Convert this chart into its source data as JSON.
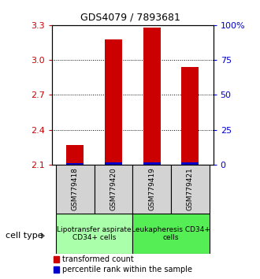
{
  "title": "GDS4079 / 7893681",
  "samples": [
    "GSM779418",
    "GSM779420",
    "GSM779419",
    "GSM779421"
  ],
  "transformed_counts": [
    2.27,
    3.18,
    3.28,
    2.94
  ],
  "percentile_ranks_pct": [
    1.0,
    1.5,
    1.5,
    1.5
  ],
  "ylim": [
    2.1,
    3.3
  ],
  "yticks_left": [
    2.1,
    2.4,
    2.7,
    3.0,
    3.3
  ],
  "yticks_right": [
    0,
    25,
    50,
    75,
    100
  ],
  "yticks_right_labels": [
    "0",
    "25",
    "50",
    "75",
    "100%"
  ],
  "bar_width": 0.45,
  "red_color": "#cc0000",
  "blue_color": "#0000cc",
  "cell_types": [
    {
      "label": "Lipotransfer aspirate\nCD34+ cells",
      "samples": [
        0,
        1
      ],
      "color": "#aaffaa"
    },
    {
      "label": "Leukapheresis CD34+\ncells",
      "samples": [
        2,
        3
      ],
      "color": "#55ee55"
    }
  ],
  "cell_type_label": "cell type",
  "legend_red": "transformed count",
  "legend_blue": "percentile rank within the sample",
  "left_tick_color": "#cc0000",
  "right_tick_color": "#0000cc",
  "title_fontsize": 9,
  "tick_fontsize": 8,
  "sample_fontsize": 6.5,
  "ct_fontsize": 6.5,
  "legend_fontsize": 7
}
